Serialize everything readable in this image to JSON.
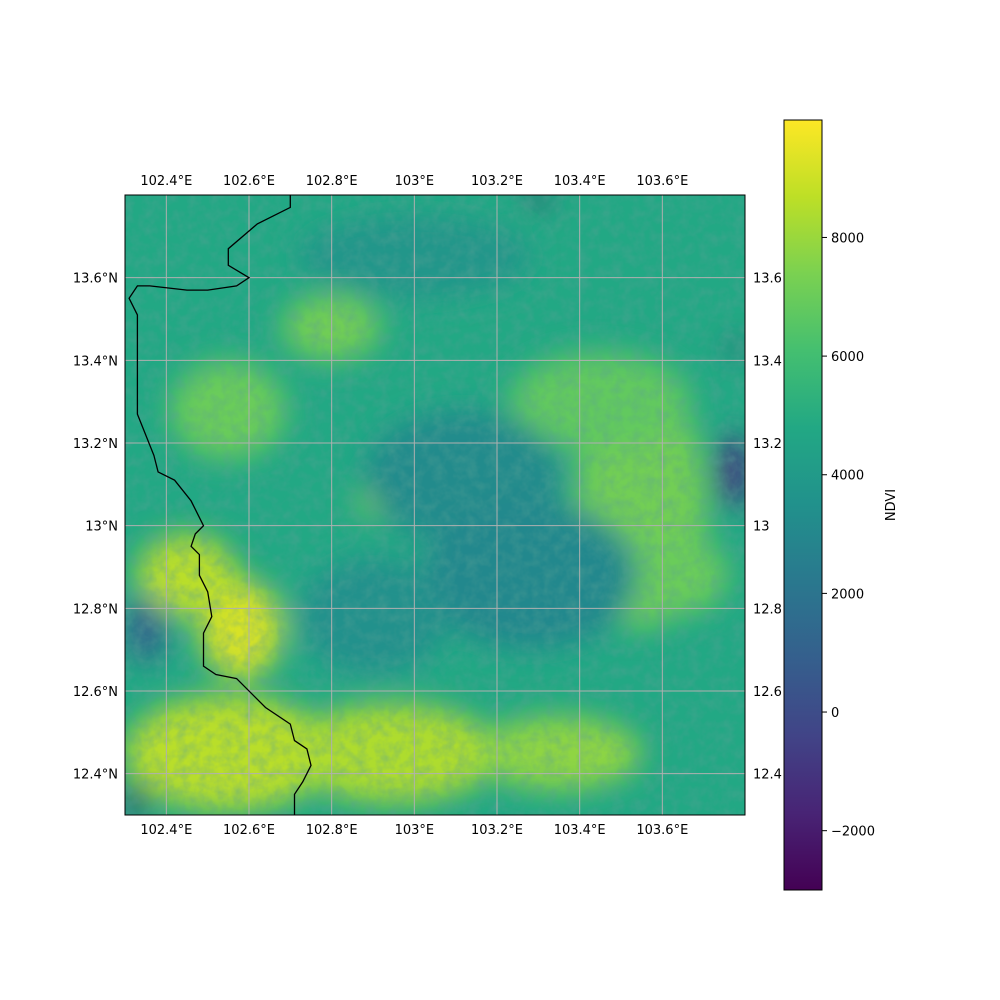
{
  "chart_data": {
    "type": "heatmap",
    "title": "",
    "colorbar": {
      "label": "NDVI",
      "range": [
        -3000,
        9980
      ],
      "ticks": [
        -2000,
        0,
        2000,
        4000,
        6000,
        8000
      ],
      "tick_labels": [
        "−2000",
        "0",
        "2000",
        "4000",
        "6000",
        "8000"
      ],
      "colormap": "viridis"
    },
    "lon_range": [
      102.3,
      103.8
    ],
    "lat_range": [
      12.3,
      13.8
    ],
    "lon_ticks": [
      102.4,
      102.6,
      102.8,
      103.0,
      103.2,
      103.4,
      103.6
    ],
    "lon_tick_labels": [
      "102.4°E",
      "102.6°E",
      "102.8°E",
      "103°E",
      "103.2°E",
      "103.4°E",
      "103.6°E"
    ],
    "lat_ticks": [
      12.4,
      12.6,
      12.8,
      13.0,
      13.2,
      13.4,
      13.6
    ],
    "lat_tick_labels": [
      "12.4°N",
      "12.6°N",
      "12.8°N",
      "13°N",
      "13.2°N",
      "13.4°N",
      "13.6°N"
    ],
    "right_lat_tick_labels": [
      "12.4",
      "12.6",
      "12.8",
      "13",
      "13.2",
      "13.4",
      "13.6"
    ],
    "grid": true,
    "border_line": [
      [
        102.7,
        13.8
      ],
      [
        102.7,
        13.77
      ],
      [
        102.62,
        13.73
      ],
      [
        102.55,
        13.67
      ],
      [
        102.55,
        13.63
      ],
      [
        102.6,
        13.6
      ],
      [
        102.57,
        13.58
      ],
      [
        102.5,
        13.57
      ],
      [
        102.45,
        13.57
      ],
      [
        102.36,
        13.58
      ],
      [
        102.33,
        13.58
      ],
      [
        102.31,
        13.55
      ],
      [
        102.33,
        13.51
      ],
      [
        102.33,
        13.27
      ],
      [
        102.37,
        13.17
      ],
      [
        102.38,
        13.13
      ],
      [
        102.42,
        13.11
      ],
      [
        102.46,
        13.06
      ],
      [
        102.49,
        13.0
      ],
      [
        102.47,
        12.98
      ],
      [
        102.46,
        12.95
      ],
      [
        102.48,
        12.93
      ],
      [
        102.48,
        12.88
      ],
      [
        102.5,
        12.84
      ],
      [
        102.51,
        12.78
      ],
      [
        102.49,
        12.74
      ],
      [
        102.49,
        12.66
      ],
      [
        102.52,
        12.64
      ],
      [
        102.57,
        12.63
      ],
      [
        102.64,
        12.56
      ],
      [
        102.7,
        12.52
      ],
      [
        102.71,
        12.48
      ],
      [
        102.74,
        12.46
      ],
      [
        102.75,
        12.42
      ],
      [
        102.73,
        12.38
      ],
      [
        102.71,
        12.35
      ],
      [
        102.71,
        12.3
      ]
    ],
    "regions": [
      {
        "lon": 103.55,
        "lat": 13.05,
        "rx": 0.16,
        "ry": 0.3,
        "value": 7200
      },
      {
        "lon": 103.45,
        "lat": 13.3,
        "rx": 0.22,
        "ry": 0.12,
        "value": 6800
      },
      {
        "lon": 103.62,
        "lat": 12.88,
        "rx": 0.14,
        "ry": 0.1,
        "value": 7000
      },
      {
        "lon": 102.58,
        "lat": 12.75,
        "rx": 0.1,
        "ry": 0.12,
        "value": 9200
      },
      {
        "lon": 102.45,
        "lat": 12.88,
        "rx": 0.12,
        "ry": 0.1,
        "value": 8600
      },
      {
        "lon": 102.55,
        "lat": 12.45,
        "rx": 0.25,
        "ry": 0.14,
        "value": 8600
      },
      {
        "lon": 102.95,
        "lat": 12.45,
        "rx": 0.25,
        "ry": 0.12,
        "value": 8400
      },
      {
        "lon": 103.35,
        "lat": 12.45,
        "rx": 0.2,
        "ry": 0.09,
        "value": 7800
      },
      {
        "lon": 102.8,
        "lat": 13.48,
        "rx": 0.12,
        "ry": 0.08,
        "value": 7200
      },
      {
        "lon": 102.55,
        "lat": 13.28,
        "rx": 0.14,
        "ry": 0.12,
        "value": 7000
      },
      {
        "lon": 102.92,
        "lat": 13.06,
        "rx": 0.06,
        "ry": 0.04,
        "value": 7600
      },
      {
        "lon": 103.12,
        "lat": 13.12,
        "rx": 0.24,
        "ry": 0.16,
        "value": 3200
      },
      {
        "lon": 103.28,
        "lat": 12.88,
        "rx": 0.26,
        "ry": 0.18,
        "value": 3000
      },
      {
        "lon": 102.9,
        "lat": 12.78,
        "rx": 0.18,
        "ry": 0.14,
        "value": 3500
      },
      {
        "lon": 103.0,
        "lat": 13.65,
        "rx": 0.28,
        "ry": 0.1,
        "value": 3800
      },
      {
        "lon": 102.35,
        "lat": 12.75,
        "rx": 0.05,
        "ry": 0.08,
        "value": 1200
      },
      {
        "lon": 103.77,
        "lat": 13.13,
        "rx": 0.04,
        "ry": 0.09,
        "value": -900
      },
      {
        "lon": 102.33,
        "lat": 12.34,
        "rx": 0.03,
        "ry": 0.03,
        "value": -2800
      },
      {
        "lon": 103.3,
        "lat": 13.79,
        "rx": 0.03,
        "ry": 0.01,
        "value": -2800
      },
      {
        "lon": 103.78,
        "lat": 13.43,
        "rx": 0.02,
        "ry": 0.01,
        "value": -2500
      }
    ],
    "background_value": 4800
  }
}
